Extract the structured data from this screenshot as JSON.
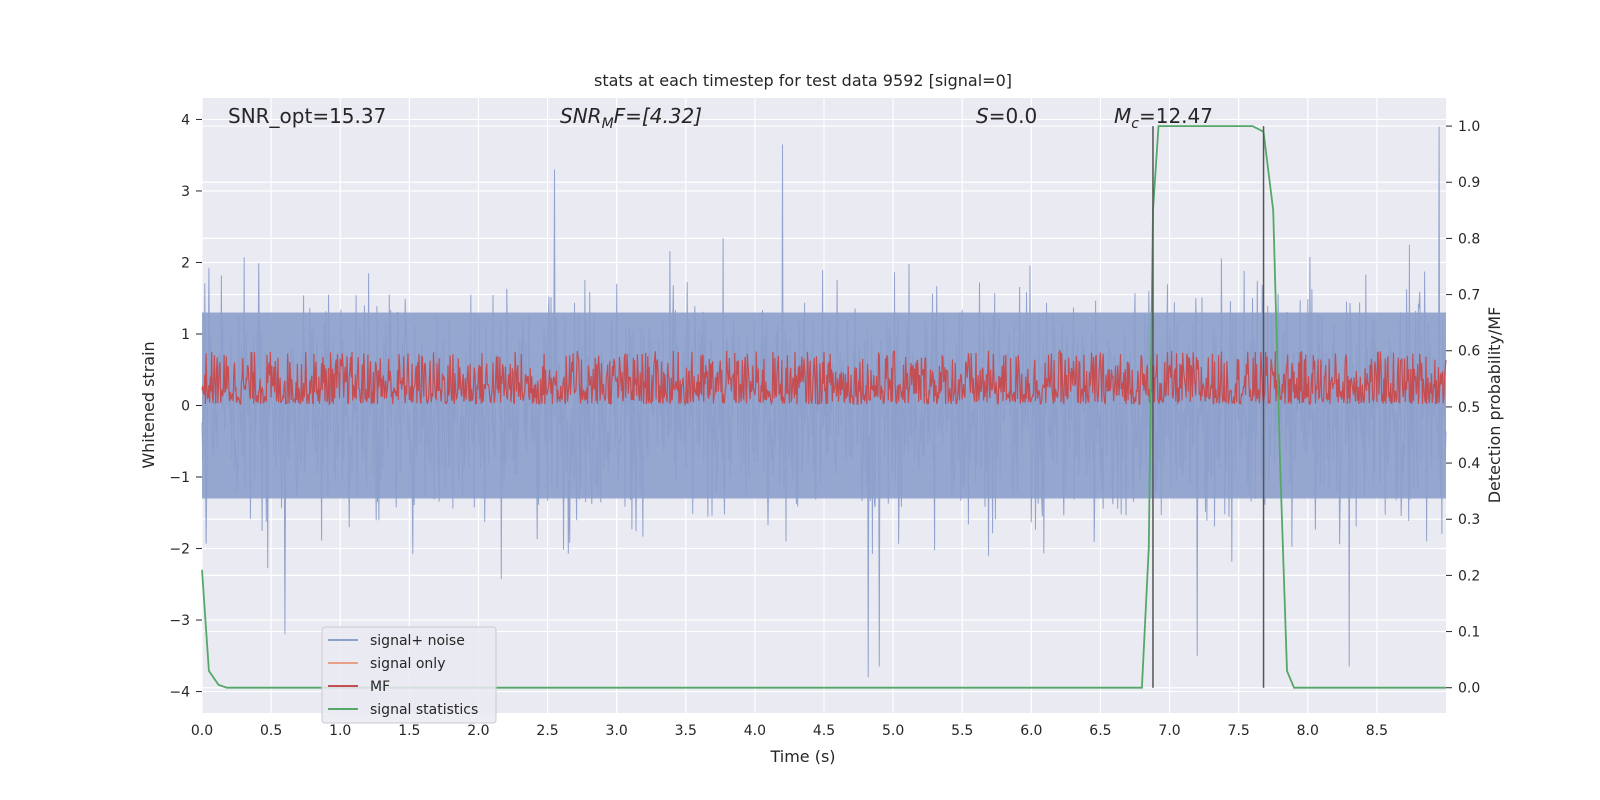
{
  "chart_data": {
    "type": "line",
    "title": "stats at each timestep for test data 9592 [signal=0]",
    "xlabel": "Time (s)",
    "ylabel": "Whitened strain",
    "y2label": "Detection probability/MF",
    "xlim": [
      0.0,
      9.0
    ],
    "ylim": [
      -4.3,
      4.3
    ],
    "y2lim": [
      -0.045,
      1.05
    ],
    "xticks": [
      "0.0",
      "0.5",
      "1.0",
      "1.5",
      "2.0",
      "2.5",
      "3.0",
      "3.5",
      "4.0",
      "4.5",
      "5.0",
      "5.5",
      "6.0",
      "6.5",
      "7.0",
      "7.5",
      "8.0",
      "8.5"
    ],
    "yticks": [
      "4",
      "3",
      "2",
      "1",
      "0",
      "−1",
      "−2",
      "−3",
      "−4"
    ],
    "y2ticks": [
      "1.0",
      "0.9",
      "0.8",
      "0.7",
      "0.6",
      "0.5",
      "0.4",
      "0.3",
      "0.2",
      "0.1",
      "0.0"
    ],
    "grid": true,
    "legend_position": "lower-left",
    "annotations": {
      "snr_opt": "SNR_opt=15.37",
      "snr_mf_main": "SNR",
      "snr_mf_sub": "M",
      "snr_mf_rest": "F=[4.32]",
      "s_main": "S",
      "s_rest": "=0.0",
      "mc_main": "M",
      "mc_sub": "c",
      "mc_rest": "=12.47"
    },
    "series": [
      {
        "name": "signal+ noise",
        "color": "#8c9fcb",
        "description_values": "noise fluctuating mostly between -2.5 and 2.5 with spikes to about 3.9 and -3.8",
        "envelope": {
          "upper_typical": 2.2,
          "lower_typical": -2.0,
          "max": 3.9,
          "min": -3.8
        },
        "spikes": [
          {
            "x": 2.55,
            "y": 3.3
          },
          {
            "x": 4.2,
            "y": 3.65
          },
          {
            "x": 8.95,
            "y": 3.9
          },
          {
            "x": 4.82,
            "y": -3.8
          },
          {
            "x": 4.9,
            "y": -3.65
          },
          {
            "x": 7.2,
            "y": -3.5
          },
          {
            "x": 8.3,
            "y": -3.65
          },
          {
            "x": 0.6,
            "y": -3.2
          }
        ]
      },
      {
        "name": "signal only",
        "color": "#e8a088",
        "values": []
      },
      {
        "name": "MF",
        "color": "#c44e52",
        "axis": "y2",
        "description_values": "matched filter output fluctuating between about 0.5 and 0.58, spikes to ~0.6",
        "band": [
          0.505,
          0.6
        ]
      },
      {
        "name": "signal statistics",
        "color": "#55a868",
        "axis": "y2",
        "x": [
          0.0,
          0.05,
          0.12,
          0.18,
          0.3,
          1.0,
          6.8,
          6.85,
          6.88,
          6.92,
          6.95,
          7.5,
          7.6,
          7.68,
          7.75,
          7.8,
          7.85,
          7.9,
          8.0,
          9.0
        ],
        "y": [
          0.21,
          0.03,
          0.005,
          0.0,
          0.0,
          0.0,
          0.0,
          0.25,
          0.85,
          1.0,
          1.0,
          1.0,
          1.0,
          0.99,
          0.85,
          0.4,
          0.03,
          0.0,
          0.0,
          0.0
        ]
      }
    ],
    "vertical_markers": [
      {
        "x": 6.88,
        "y2_top": 1.0,
        "color": "#555555"
      },
      {
        "x": 7.68,
        "y2_top": 1.0,
        "color": "#555555"
      }
    ]
  }
}
